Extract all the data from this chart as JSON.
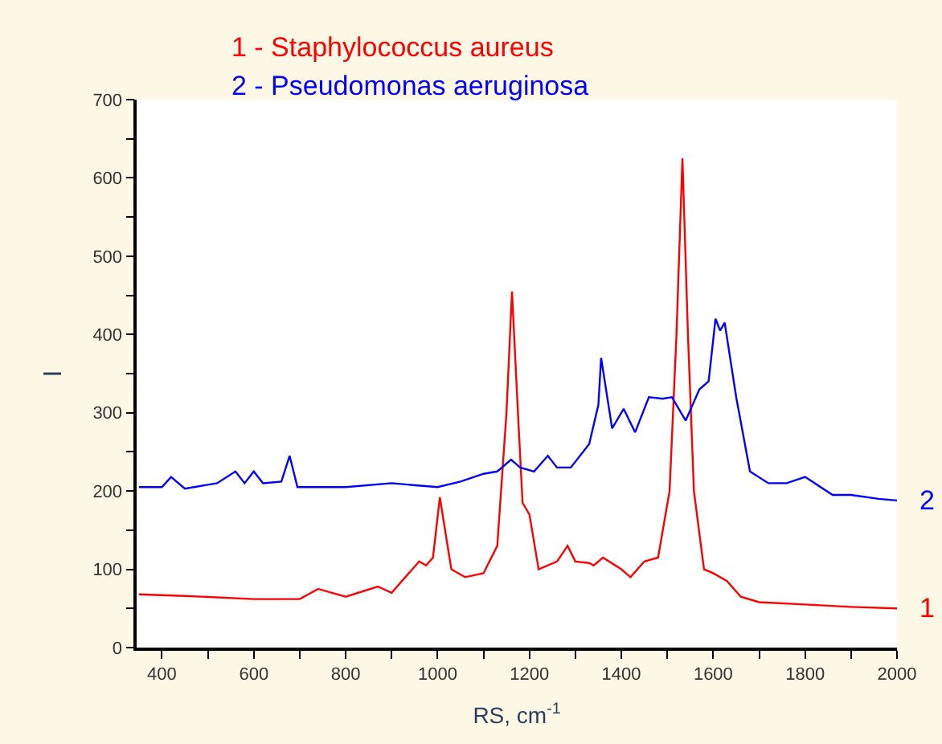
{
  "chart_data": {
    "type": "line",
    "xlabel": "RS, cm$^{-1}$",
    "ylabel": "I",
    "xlim": [
      345,
      2000
    ],
    "ylim": [
      0,
      700
    ],
    "xticks": [
      400,
      {
        "value": 500,
        "label": null
      },
      600,
      {
        "value": 700,
        "label": null
      },
      800,
      {
        "value": 900,
        "label": null
      },
      1000,
      {
        "value": 1100,
        "label": null
      },
      1200,
      {
        "value": 1300,
        "label": null
      },
      1400,
      {
        "value": 1500,
        "label": null
      },
      1600,
      {
        "value": 1700,
        "label": null
      },
      1800,
      {
        "value": 1900,
        "label": null
      },
      2000
    ],
    "yticks": [
      0,
      {
        "value": 50,
        "label": null
      },
      100,
      {
        "value": 150,
        "label": null
      },
      200,
      {
        "value": 250,
        "label": null
      },
      300,
      {
        "value": 350,
        "label": null
      },
      400,
      {
        "value": 450,
        "label": null
      },
      500,
      {
        "value": 550,
        "label": null
      },
      600,
      {
        "value": 650,
        "label": null
      },
      700
    ],
    "line_style": "solid",
    "series": [
      {
        "name": "1 - Staphylococcus aureus",
        "color": "#ff0000",
        "x": [
          350,
          450,
          600,
          700,
          740,
          800,
          870,
          900,
          960,
          975,
          990,
          1005,
          1030,
          1060,
          1100,
          1130,
          1150,
          1162,
          1175,
          1185,
          1200,
          1220,
          1260,
          1283,
          1300,
          1330,
          1340,
          1360,
          1400,
          1420,
          1450,
          1480,
          1505,
          1520,
          1533,
          1545,
          1558,
          1580,
          1600,
          1630,
          1660,
          1700,
          1800,
          1900,
          2000
        ],
        "values": [
          68,
          66,
          62,
          62,
          75,
          65,
          78,
          70,
          110,
          105,
          115,
          192,
          100,
          90,
          95,
          130,
          300,
          455,
          300,
          185,
          170,
          100,
          110,
          130,
          110,
          108,
          105,
          115,
          100,
          90,
          110,
          115,
          200,
          400,
          625,
          400,
          200,
          100,
          95,
          85,
          65,
          58,
          55,
          52,
          50
        ]
      },
      {
        "name": "2 - Pseudomonas aeruginosa",
        "color": "#0000ff",
        "x": [
          350,
          400,
          420,
          450,
          520,
          560,
          580,
          600,
          620,
          660,
          678,
          695,
          800,
          900,
          1000,
          1050,
          1100,
          1130,
          1160,
          1180,
          1210,
          1240,
          1260,
          1290,
          1330,
          1350,
          1356,
          1380,
          1405,
          1430,
          1460,
          1490,
          1510,
          1540,
          1570,
          1590,
          1605,
          1615,
          1625,
          1650,
          1680,
          1720,
          1760,
          1800,
          1860,
          1900,
          1960,
          2000
        ],
        "values": [
          205,
          205,
          218,
          203,
          210,
          225,
          210,
          225,
          210,
          212,
          245,
          205,
          205,
          210,
          205,
          212,
          222,
          225,
          240,
          230,
          225,
          245,
          230,
          230,
          260,
          310,
          370,
          280,
          305,
          275,
          320,
          318,
          320,
          290,
          330,
          340,
          420,
          405,
          415,
          320,
          225,
          210,
          210,
          218,
          195,
          195,
          190,
          188
        ]
      }
    ],
    "annotations": [
      {
        "text": "1",
        "x": 2000,
        "y": 50
      },
      {
        "text": "2",
        "x": 2000,
        "y": 188
      }
    ]
  }
}
